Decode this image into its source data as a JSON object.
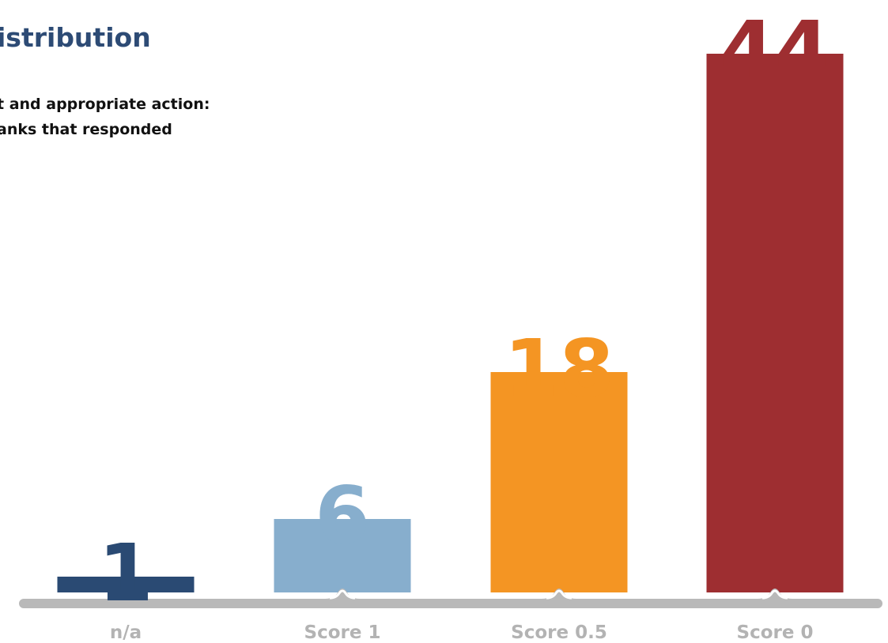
{
  "chart_data": {
    "type": "bar",
    "title": "istribution",
    "subtitle_lines": [
      "t and appropriate action:",
      "anks that responded"
    ],
    "categories": [
      "n/a",
      "Score 1",
      "Score 0.5",
      "Score 0"
    ],
    "values": [
      1,
      6,
      18,
      44
    ],
    "colors": [
      "#2a4a73",
      "#87aecd",
      "#f49523",
      "#9e2e31"
    ],
    "data_labels": [
      "1",
      "6",
      "18",
      "44"
    ],
    "xlabel": "",
    "ylabel": "",
    "grid": false,
    "legend": "none"
  }
}
